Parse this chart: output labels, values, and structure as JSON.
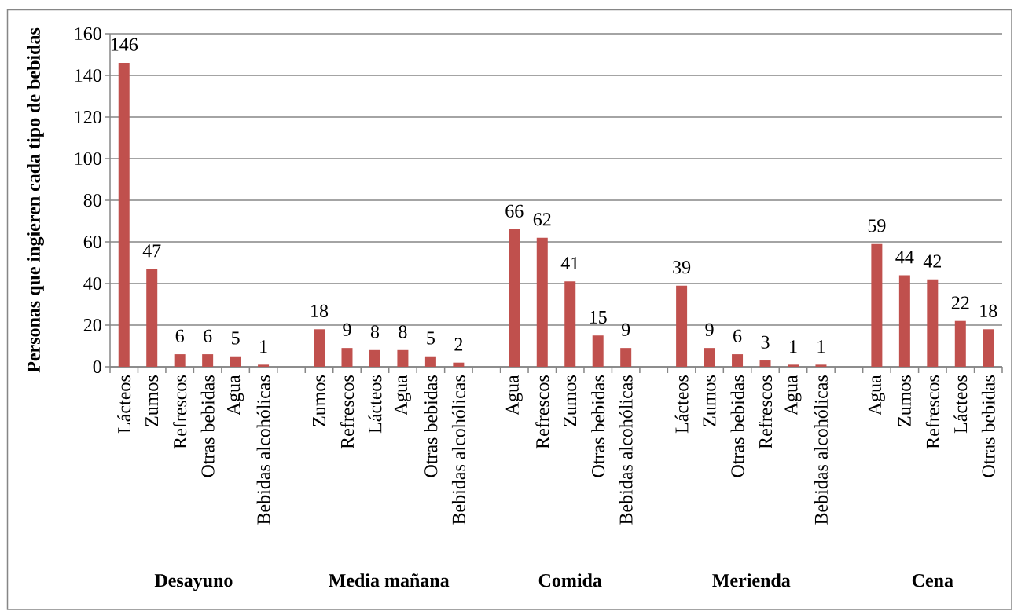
{
  "chart_data": {
    "type": "bar",
    "ylabel": "Personas que ingieren cada tipo de bebidas",
    "categories": [
      "Lácteos",
      "Zumos",
      "Refrescos",
      "Otras bebidas",
      "Agua",
      "Bebidas alcohólicas",
      null,
      "Zumos",
      "Refrescos",
      "Lácteos",
      "Agua",
      "Otras bebidas",
      "Bebidas alcohólicas",
      null,
      "Agua",
      "Refrescos",
      "Zumos",
      "Otras bebidas",
      "Bebidas alcohólicas",
      null,
      "Lácteos",
      "Zumos",
      "Otras bebidas",
      "Refrescos",
      "Agua",
      "Bebidas alcohólicas",
      null,
      "Agua",
      "Zumos",
      "Refrescos",
      "Lácteos",
      "Otras bebidas"
    ],
    "values": [
      146,
      47,
      6,
      6,
      5,
      1,
      null,
      18,
      9,
      8,
      8,
      5,
      2,
      null,
      66,
      62,
      41,
      15,
      9,
      null,
      39,
      9,
      6,
      3,
      1,
      1,
      null,
      59,
      44,
      42,
      22,
      18
    ],
    "color": "#c0504d",
    "ylim": [
      0,
      160
    ],
    "yticks": [
      0,
      20,
      40,
      60,
      80,
      100,
      120,
      140,
      160
    ],
    "grid": "y",
    "data_labels": true,
    "annotations": [
      "Desayuno",
      "Media mañana",
      "Comida",
      "Merienda",
      "Cena"
    ]
  }
}
